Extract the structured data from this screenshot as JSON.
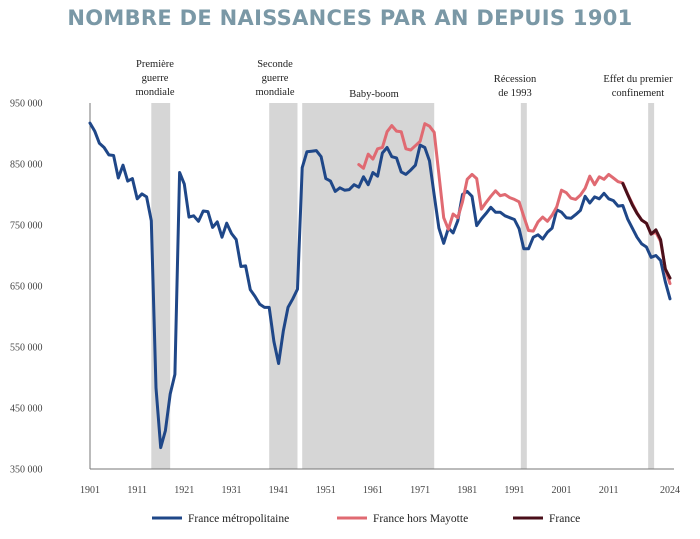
{
  "title": "NOMBRE DE NAISSANCES PAR AN DEPUIS 1901",
  "colors": {
    "title": "#7a98a6",
    "metro": "#1f4788",
    "hors_mayotte": "#e06a72",
    "france": "#4a0f1a",
    "shade": "#d6d6d6",
    "axis": "#555555"
  },
  "chart_data": {
    "type": "line",
    "title": "NOMBRE DE NAISSANCES PAR AN DEPUIS 1901",
    "xlim": [
      1901,
      2024
    ],
    "ylim": [
      350000,
      950000
    ],
    "x_ticks": [
      1901,
      1911,
      1921,
      1931,
      1941,
      1951,
      1961,
      1971,
      1981,
      1991,
      2001,
      2011,
      2024
    ],
    "y_ticks": [
      350000,
      450000,
      550000,
      650000,
      750000,
      850000,
      950000
    ],
    "y_tick_labels": [
      "350 000",
      "450 000",
      "550 000",
      "650 000",
      "750 000",
      "850 000",
      "950 000"
    ],
    "shaded_periods": [
      {
        "start": 1914,
        "end": 1918,
        "label_lines": [
          "Première",
          "guerre",
          "mondiale"
        ]
      },
      {
        "start": 1939,
        "end": 1945,
        "label_lines": [
          "Seconde",
          "guerre",
          "mondiale"
        ]
      },
      {
        "start": 1946,
        "end": 1974,
        "label_lines": [
          "Baby-boom"
        ]
      },
      {
        "start": 1993,
        "end": 1993,
        "label_lines": [
          "Récession",
          "de 1993"
        ]
      },
      {
        "start": 2020,
        "end": 2020,
        "label_lines": [
          "Effet du premier",
          "confinement"
        ]
      }
    ],
    "series": [
      {
        "name": "France métropolitaine",
        "color_key": "metro",
        "x": [
          1901,
          1902,
          1903,
          1904,
          1905,
          1906,
          1907,
          1908,
          1909,
          1910,
          1911,
          1912,
          1913,
          1914,
          1915,
          1916,
          1917,
          1918,
          1919,
          1920,
          1921,
          1922,
          1923,
          1924,
          1925,
          1926,
          1927,
          1928,
          1929,
          1930,
          1931,
          1932,
          1933,
          1934,
          1935,
          1936,
          1937,
          1938,
          1939,
          1940,
          1941,
          1942,
          1943,
          1944,
          1945,
          1946,
          1947,
          1948,
          1949,
          1950,
          1951,
          1952,
          1953,
          1954,
          1955,
          1956,
          1957,
          1958,
          1959,
          1960,
          1961,
          1962,
          1963,
          1964,
          1965,
          1966,
          1967,
          1968,
          1969,
          1970,
          1971,
          1972,
          1973,
          1974,
          1975,
          1976,
          1977,
          1978,
          1979,
          1980,
          1981,
          1982,
          1983,
          1984,
          1985,
          1986,
          1987,
          1988,
          1989,
          1990,
          1991,
          1992,
          1993,
          1994,
          1995,
          1996,
          1997,
          1998,
          1999,
          2000,
          2001,
          2002,
          2003,
          2004,
          2005,
          2006,
          2007,
          2008,
          2009,
          2010,
          2011,
          2012,
          2013,
          2014,
          2015,
          2016,
          2017,
          2018,
          2019,
          2020,
          2021,
          2022,
          2023,
          2024
        ],
        "values": [
          917000,
          904000,
          884000,
          877000,
          865000,
          864000,
          827000,
          848000,
          822000,
          826000,
          793000,
          801000,
          796000,
          757000,
          483000,
          385000,
          413000,
          473000,
          505000,
          836000,
          817000,
          763000,
          765000,
          756000,
          773000,
          772000,
          746000,
          755000,
          730000,
          753000,
          736000,
          726000,
          682000,
          683000,
          644000,
          633000,
          620000,
          615000,
          615000,
          559000,
          523000,
          576000,
          615000,
          629000,
          645000,
          844000,
          870000,
          871000,
          872000,
          862000,
          826000,
          822000,
          805000,
          811000,
          807000,
          808000,
          816000,
          812000,
          829000,
          816000,
          836000,
          830000,
          868000,
          877000,
          862000,
          860000,
          837000,
          833000,
          840000,
          848000,
          881000,
          877000,
          855000,
          799000,
          745000,
          720000,
          745000,
          737000,
          757000,
          800000,
          805000,
          797000,
          749000,
          760000,
          769000,
          779000,
          771000,
          771000,
          765000,
          762000,
          759000,
          744000,
          711000,
          711000,
          730000,
          734000,
          727000,
          738000,
          745000,
          775000,
          771000,
          762000,
          761000,
          767000,
          774000,
          797000,
          786000,
          796000,
          793000,
          802000,
          793000,
          790000,
          781000,
          782000,
          760000,
          745000,
          730000,
          719000,
          714000,
          697000,
          700000,
          692000,
          657000,
          629000
        ]
      },
      {
        "name": "France hors Mayotte",
        "color_key": "hors_mayotte",
        "x": [
          1958,
          1959,
          1960,
          1961,
          1962,
          1963,
          1964,
          1965,
          1966,
          1967,
          1968,
          1969,
          1970,
          1971,
          1972,
          1973,
          1974,
          1975,
          1976,
          1977,
          1978,
          1979,
          1980,
          1981,
          1982,
          1983,
          1984,
          1985,
          1986,
          1987,
          1988,
          1989,
          1990,
          1991,
          1992,
          1993,
          1994,
          1995,
          1996,
          1997,
          1998,
          1999,
          2000,
          2001,
          2002,
          2003,
          2004,
          2005,
          2006,
          2007,
          2008,
          2009,
          2010,
          2011,
          2012,
          2013,
          2014,
          2015,
          2016,
          2017,
          2018,
          2019,
          2020,
          2021,
          2022,
          2023,
          2024
        ],
        "values": [
          849000,
          843000,
          866000,
          858000,
          875000,
          877000,
          903000,
          913000,
          904000,
          903000,
          875000,
          873000,
          880000,
          887000,
          916000,
          912000,
          902000,
          833000,
          762000,
          743000,
          768000,
          762000,
          788000,
          825000,
          833000,
          826000,
          776000,
          787000,
          797000,
          806000,
          798000,
          800000,
          795000,
          792000,
          788000,
          764000,
          741000,
          740000,
          755000,
          763000,
          756000,
          766000,
          780000,
          807000,
          803000,
          794000,
          792000,
          799000,
          810000,
          830000,
          816000,
          829000,
          825000,
          833000,
          827000,
          821000,
          819000,
          801000,
          785000,
          770000,
          758000,
          753000,
          735000,
          738000,
          723000,
          678000,
          654000
        ]
      },
      {
        "name": "France",
        "color_key": "france",
        "x": [
          2014,
          2015,
          2016,
          2017,
          2018,
          2019,
          2020,
          2021,
          2022,
          2023,
          2024
        ],
        "values": [
          818000,
          800000,
          783000,
          769000,
          758000,
          753000,
          735000,
          742000,
          726000,
          678000,
          663000
        ]
      }
    ]
  }
}
